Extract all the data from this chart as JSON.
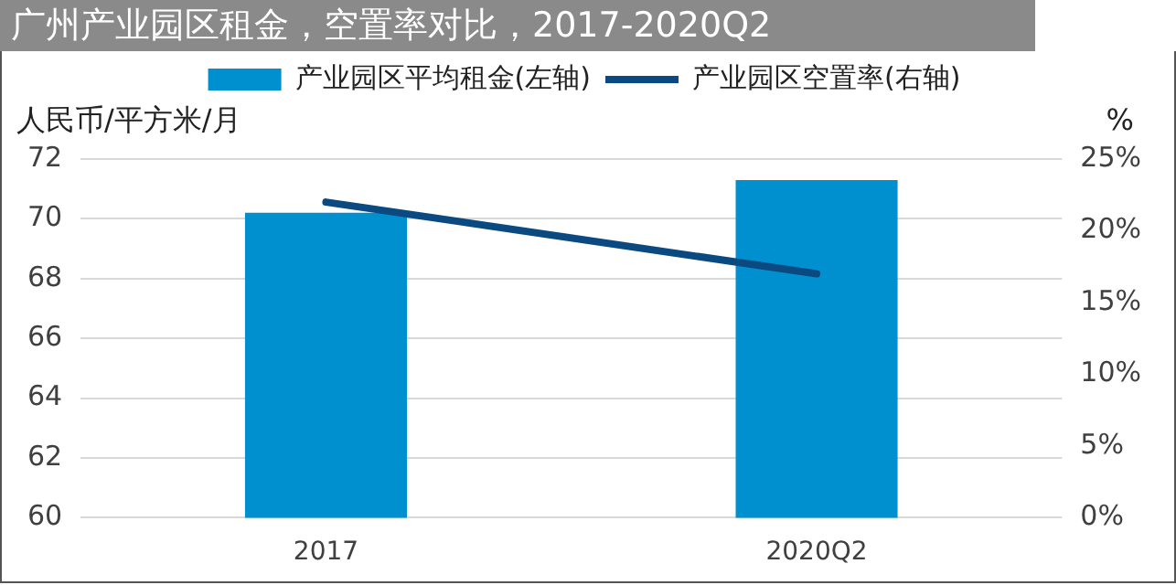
{
  "chart_data": {
    "type": "bar",
    "title": "广州产业园区租金，空置率对比，2017-2020Q2",
    "ylabel": "人民币/平方米/月",
    "y2label": "%",
    "categories": [
      "2017",
      "2020Q2"
    ],
    "series": [
      {
        "name": "产业园区平均租金(左轴)",
        "color": "#0090d0",
        "values": [
          70.2,
          71.3
        ]
      },
      {
        "name": "产业园区空置率(右轴)",
        "type": "line",
        "axis": "y2",
        "color": "#0b4a80",
        "values": [
          22,
          17
        ],
        "marker": "none"
      }
    ],
    "ylim": [
      60,
      72
    ],
    "yticks": [
      60,
      62,
      64,
      66,
      68,
      70,
      72
    ],
    "y2lim": [
      0,
      25
    ],
    "y2ticks": [
      {
        "value": 0,
        "label": "0%"
      },
      {
        "value": 5,
        "label": "5%"
      },
      {
        "value": 10,
        "label": "10%"
      },
      {
        "value": 15,
        "label": "15%"
      },
      {
        "value": 20,
        "label": "20%"
      },
      {
        "value": 25,
        "label": "25%"
      }
    ],
    "grid": "y",
    "legend": "top"
  }
}
